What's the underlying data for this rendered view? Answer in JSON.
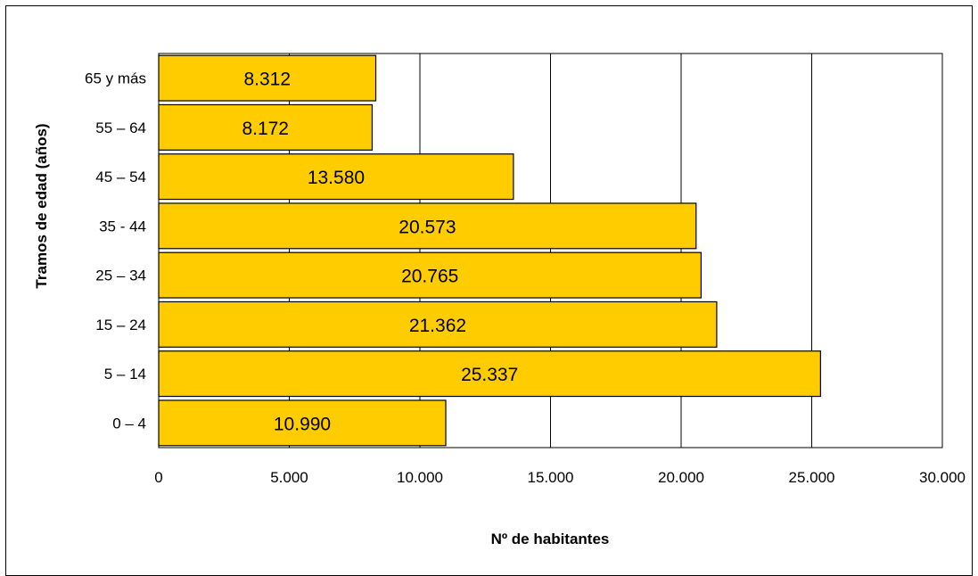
{
  "chart_data": {
    "type": "bar",
    "orientation": "horizontal",
    "categories": [
      "0 – 4",
      "5 – 14",
      "15 – 24",
      "25 – 34",
      "35 - 44",
      "45 – 54",
      "55 – 64",
      "65 y más"
    ],
    "values": [
      10990,
      25337,
      21362,
      20765,
      20573,
      13580,
      8172,
      8312
    ],
    "data_labels": [
      "10.990",
      "25.337",
      "21.362",
      "20.765",
      "20.573",
      "13.580",
      "8.172",
      "8.312"
    ],
    "xlabel": "Nº de habitantes",
    "ylabel": "Tramos de edad (años)",
    "xlim": [
      0,
      30000
    ],
    "x_ticks": [
      0,
      5000,
      10000,
      15000,
      20000,
      25000,
      30000
    ],
    "x_tick_labels": [
      "0",
      "5.000",
      "10.000",
      "15.000",
      "20.000",
      "25.000",
      "30.000"
    ],
    "grid": "vertical",
    "bar_color": "#FFCC00",
    "bar_edge_color": "#000000"
  }
}
